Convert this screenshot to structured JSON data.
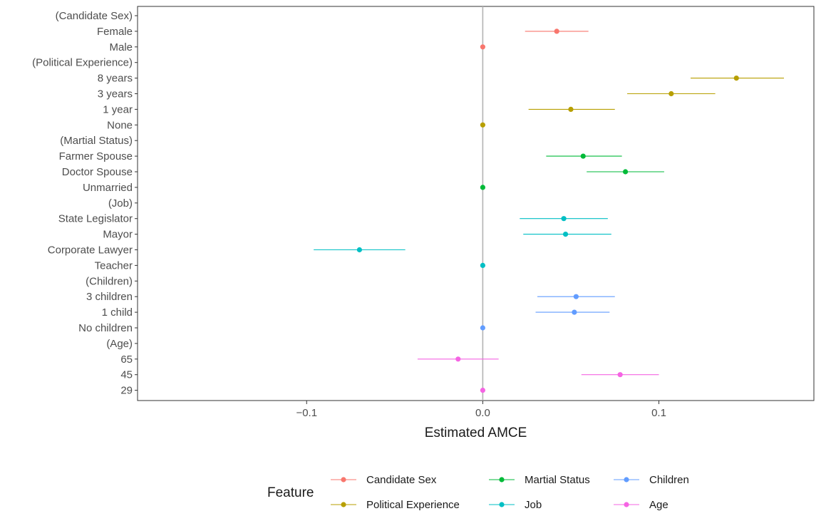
{
  "chart_data": {
    "type": "scatter",
    "subtype": "coefficient-plot-with-error-bars",
    "xlabel": "Estimated AMCE",
    "xlim": [
      -0.196,
      0.188
    ],
    "x_ticks": [
      -0.1,
      0.0,
      0.1
    ],
    "x_tick_labels": [
      "−0.1",
      "0.0",
      "0.1"
    ],
    "reference_line": 0,
    "grid": false,
    "legend": {
      "title": "Feature",
      "position": "bottom",
      "entries": [
        {
          "name": "Candidate Sex",
          "color": "#F8766D"
        },
        {
          "name": "Political Experience",
          "color": "#B79F00"
        },
        {
          "name": "Martial Status",
          "color": "#00BA38"
        },
        {
          "name": "Job",
          "color": "#00BFC4"
        },
        {
          "name": "Children",
          "color": "#619CFF"
        },
        {
          "name": "Age",
          "color": "#F564E3"
        }
      ]
    },
    "rows": [
      {
        "label": "(Candidate Sex)",
        "header": true
      },
      {
        "label": "Female",
        "group": "Candidate Sex",
        "estimate": 0.042,
        "lower": 0.024,
        "upper": 0.06
      },
      {
        "label": "Male",
        "group": "Candidate Sex",
        "estimate": 0.0,
        "lower": 0.0,
        "upper": 0.0
      },
      {
        "label": "(Political Experience)",
        "header": true
      },
      {
        "label": "8 years",
        "group": "Political Experience",
        "estimate": 0.144,
        "lower": 0.118,
        "upper": 0.171
      },
      {
        "label": "3 years",
        "group": "Political Experience",
        "estimate": 0.107,
        "lower": 0.082,
        "upper": 0.132
      },
      {
        "label": "1 year",
        "group": "Political Experience",
        "estimate": 0.05,
        "lower": 0.026,
        "upper": 0.075
      },
      {
        "label": "None",
        "group": "Political Experience",
        "estimate": 0.0,
        "lower": 0.0,
        "upper": 0.0
      },
      {
        "label": "(Martial Status)",
        "header": true
      },
      {
        "label": "Farmer Spouse",
        "group": "Martial Status",
        "estimate": 0.057,
        "lower": 0.036,
        "upper": 0.079
      },
      {
        "label": "Doctor Spouse",
        "group": "Martial Status",
        "estimate": 0.081,
        "lower": 0.059,
        "upper": 0.103
      },
      {
        "label": "Unmarried",
        "group": "Martial Status",
        "estimate": 0.0,
        "lower": 0.0,
        "upper": 0.0
      },
      {
        "label": "(Job)",
        "header": true
      },
      {
        "label": "State Legislator",
        "group": "Job",
        "estimate": 0.046,
        "lower": 0.021,
        "upper": 0.071
      },
      {
        "label": "Mayor",
        "group": "Job",
        "estimate": 0.047,
        "lower": 0.023,
        "upper": 0.073
      },
      {
        "label": "Corporate Lawyer",
        "group": "Job",
        "estimate": -0.07,
        "lower": -0.096,
        "upper": -0.044
      },
      {
        "label": "Teacher",
        "group": "Job",
        "estimate": 0.0,
        "lower": 0.0,
        "upper": 0.0
      },
      {
        "label": "(Children)",
        "header": true
      },
      {
        "label": "3 children",
        "group": "Children",
        "estimate": 0.053,
        "lower": 0.031,
        "upper": 0.075
      },
      {
        "label": "1 child",
        "group": "Children",
        "estimate": 0.052,
        "lower": 0.03,
        "upper": 0.072
      },
      {
        "label": "No children",
        "group": "Children",
        "estimate": 0.0,
        "lower": 0.0,
        "upper": 0.0
      },
      {
        "label": "(Age)",
        "header": true
      },
      {
        "label": "65",
        "group": "Age",
        "estimate": -0.014,
        "lower": -0.037,
        "upper": 0.009
      },
      {
        "label": "45",
        "group": "Age",
        "estimate": 0.078,
        "lower": 0.056,
        "upper": 0.1
      },
      {
        "label": "29",
        "group": "Age",
        "estimate": 0.0,
        "lower": 0.0,
        "upper": 0.0
      }
    ]
  }
}
